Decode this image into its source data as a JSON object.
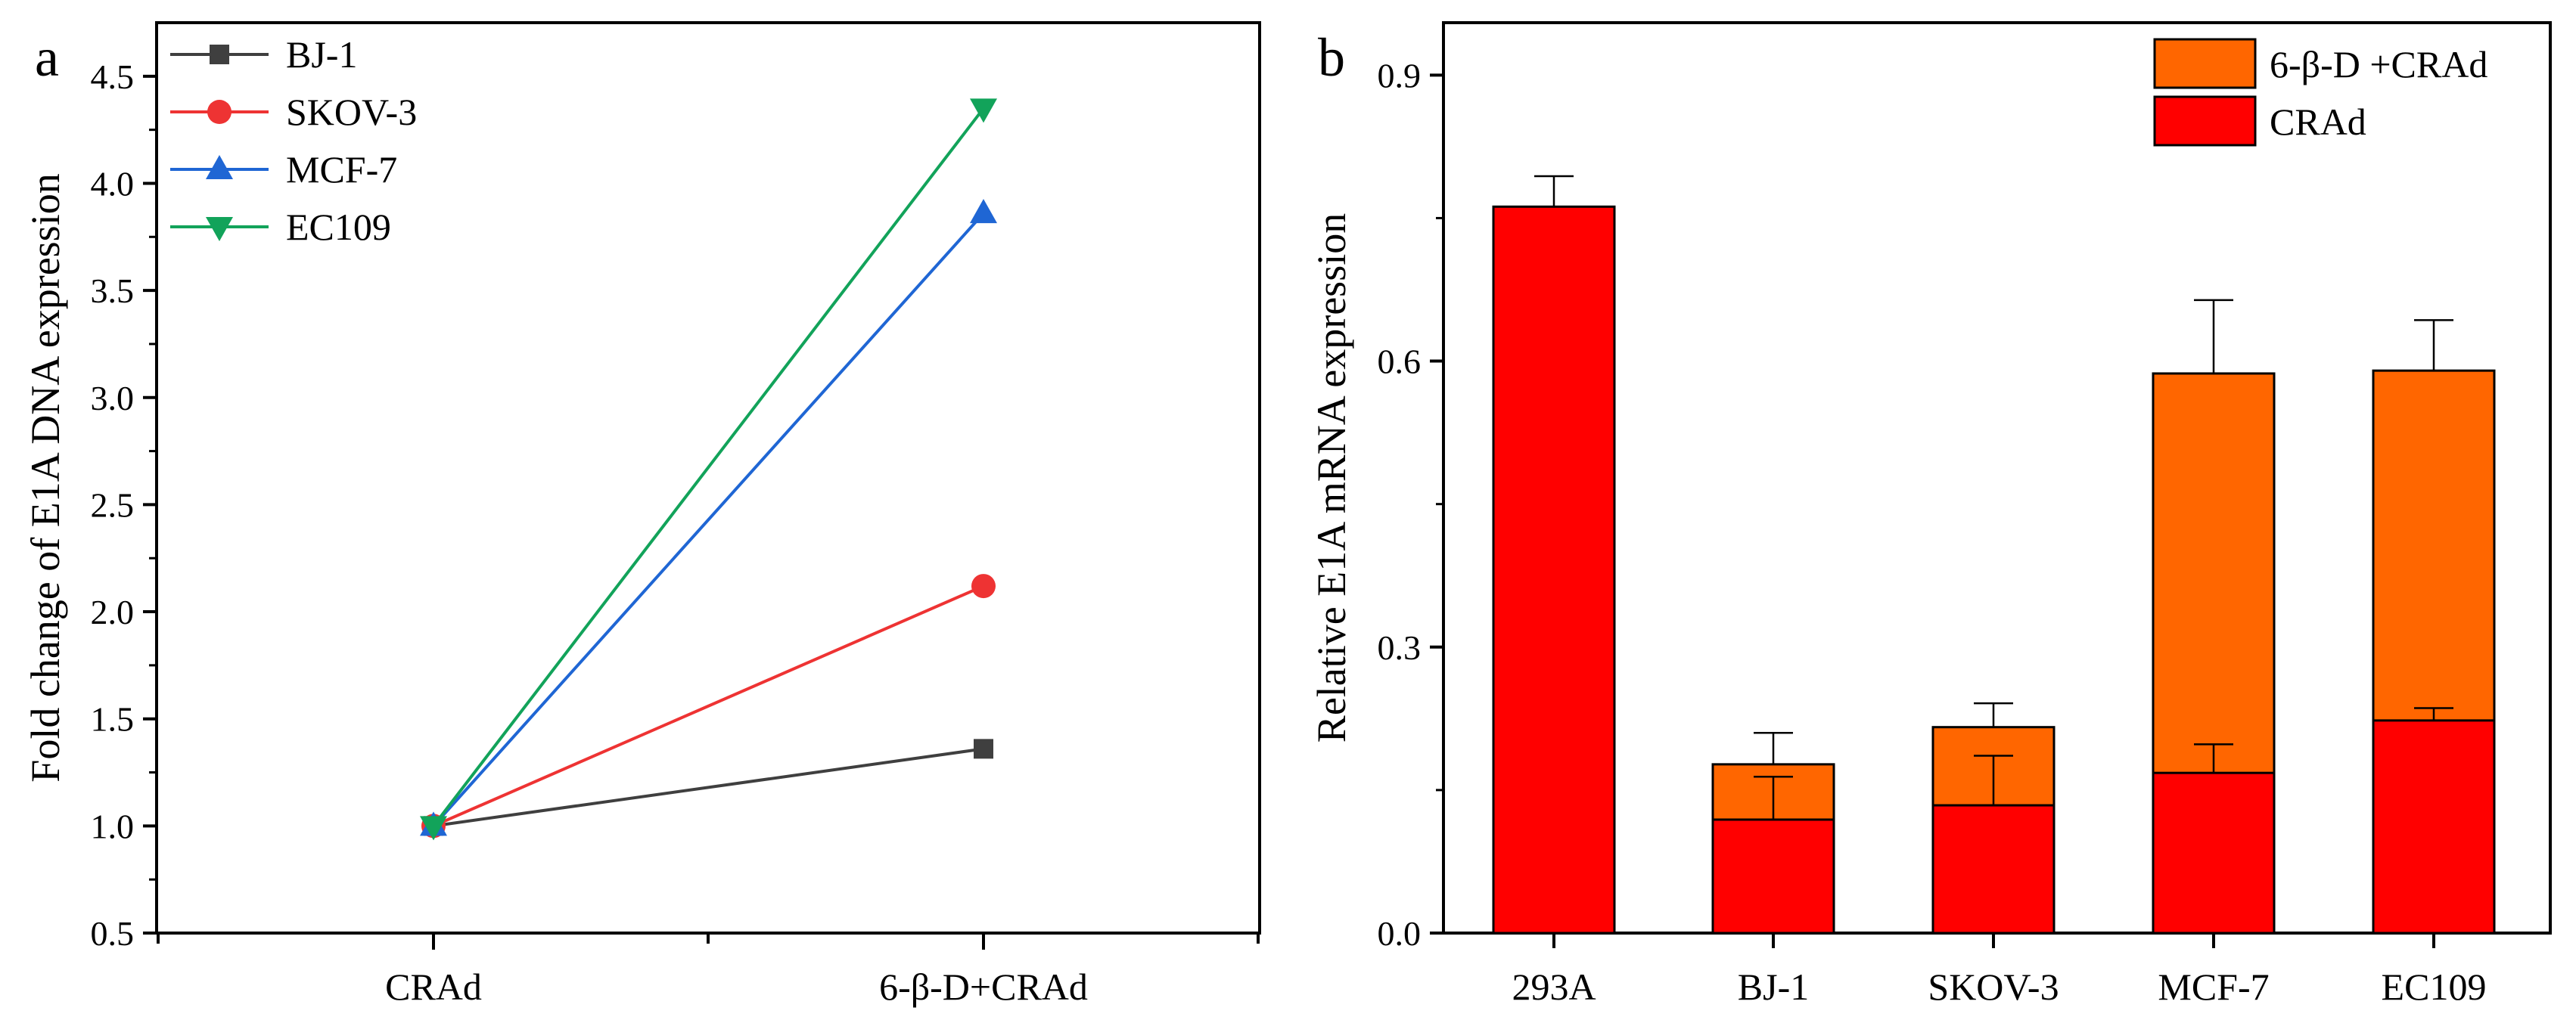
{
  "chart_data": [
    {
      "panel": "a",
      "type": "line",
      "ylabel": "Fold change of E1A DNA expression",
      "xlabel": "",
      "categories": [
        "CRAd",
        "6-β-D+CRAd"
      ],
      "ylim": [
        0.5,
        4.75
      ],
      "yticks": [
        "0.5",
        "1.0",
        "1.5",
        "2.0",
        "2.5",
        "3.0",
        "3.5",
        "4.0",
        "4.5"
      ],
      "legend_position": "top-left",
      "series": [
        {
          "name": "BJ-1",
          "color": "#3f3f3f",
          "marker": "square",
          "values": [
            1.0,
            1.36
          ]
        },
        {
          "name": "SKOV-3",
          "color": "#ee3333",
          "marker": "circle",
          "values": [
            1.0,
            2.12
          ]
        },
        {
          "name": "MCF-7",
          "color": "#1f66d4",
          "marker": "triangle-up",
          "values": [
            1.0,
            3.86
          ]
        },
        {
          "name": "EC109",
          "color": "#12a35a",
          "marker": "triangle-down",
          "values": [
            1.0,
            4.35
          ]
        }
      ]
    },
    {
      "panel": "b",
      "type": "bar",
      "ylabel": "Relative E1A  mRNA expression",
      "xlabel": "",
      "categories": [
        "293A",
        "BJ-1",
        "SKOV-3",
        "MCF-7",
        "EC109"
      ],
      "ylim": [
        0.0,
        0.955
      ],
      "yticks": [
        "0.0",
        "0.3",
        "0.6",
        "0.9"
      ],
      "legend_position": "top-right",
      "series": [
        {
          "name": "6-β-D +CRAd",
          "color": "#ff6600",
          "values": [
            null,
            0.177,
            0.216,
            0.587,
            0.59
          ],
          "errors": [
            null,
            0.033,
            0.025,
            0.077,
            0.053
          ]
        },
        {
          "name": "CRAd",
          "color": "#ff0000",
          "values": [
            0.762,
            0.119,
            0.134,
            0.168,
            0.223
          ],
          "errors": [
            0.032,
            0.045,
            0.052,
            0.03,
            0.013
          ]
        }
      ]
    }
  ]
}
